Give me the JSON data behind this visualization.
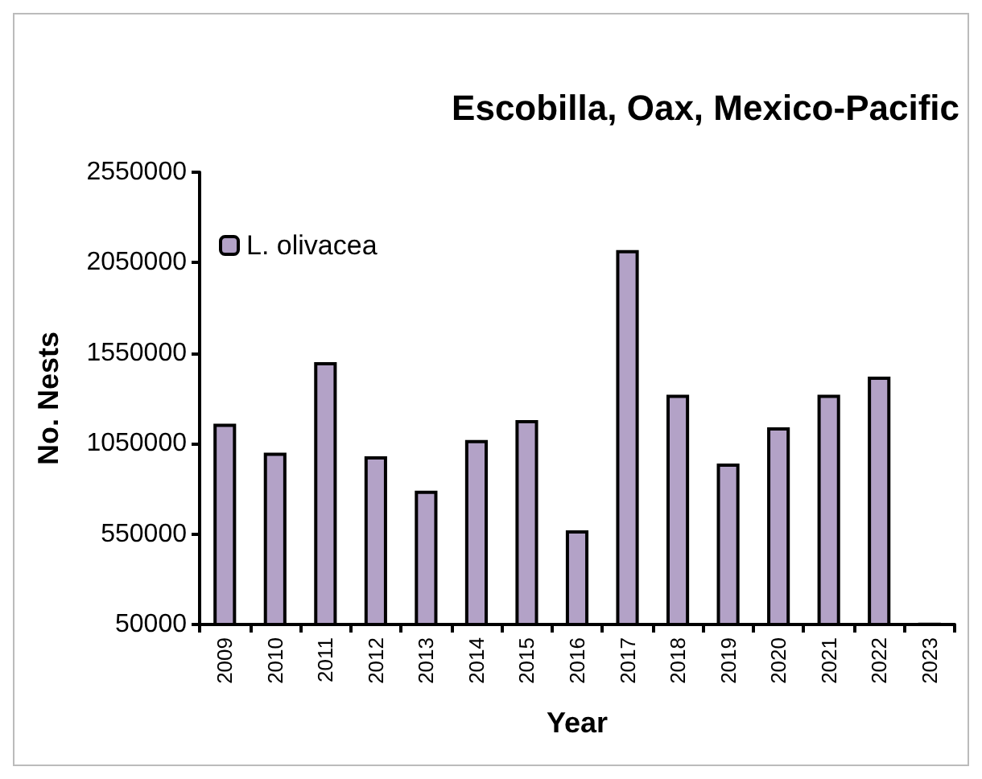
{
  "chart_data": {
    "type": "bar",
    "title": "Escobilla, Oax, Mexico-Pacific",
    "xlabel": "Year",
    "ylabel": "No. Nests",
    "categories": [
      "2009",
      "2010",
      "2011",
      "2012",
      "2013",
      "2014",
      "2015",
      "2016",
      "2017",
      "2018",
      "2019",
      "2020",
      "2021",
      "2022",
      "2023"
    ],
    "series": [
      {
        "name": "L. olivacea",
        "color": "#b3a2c7",
        "values": [
          1160000,
          1000000,
          1500000,
          980000,
          790000,
          1070000,
          1180000,
          570000,
          2120000,
          1320000,
          940000,
          1140000,
          1320000,
          1420000,
          60000
        ]
      }
    ],
    "ylim": [
      50000,
      2550000
    ],
    "yticks": [
      50000,
      550000,
      1050000,
      1550000,
      2050000,
      2550000
    ],
    "grid": false,
    "legend": "top left"
  }
}
